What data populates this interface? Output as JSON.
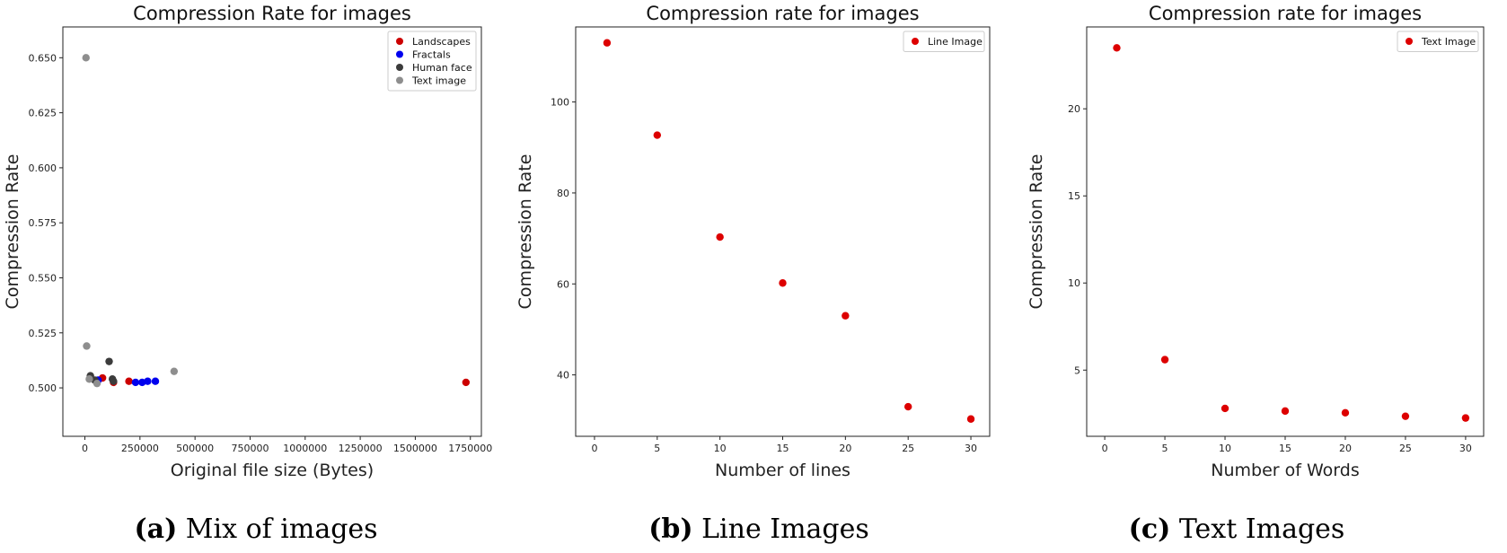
{
  "chart_data": [
    {
      "type": "scatter",
      "title": "Compression Rate for images",
      "xlabel": "Original file size (Bytes)",
      "ylabel": "Compression Rate",
      "xlim": [
        -100000,
        1800000
      ],
      "ylim": [
        0.478,
        0.664
      ],
      "xticks": [
        0,
        250000,
        500000,
        750000,
        1000000,
        1250000,
        1500000,
        1750000
      ],
      "xtick_labels": [
        "0",
        "250000",
        "500000",
        "750000",
        "1000000",
        "1250000",
        "1500000",
        "1750000"
      ],
      "yticks": [
        0.5,
        0.525,
        0.55,
        0.575,
        0.6,
        0.625,
        0.65
      ],
      "ytick_labels": [
        "0.500",
        "0.525",
        "0.550",
        "0.575",
        "0.600",
        "0.625",
        "0.650"
      ],
      "grid": false,
      "legend_position": "top-right",
      "series": [
        {
          "name": "Landscapes",
          "color": "#cc0000",
          "x": [
            80000,
            130000,
            200000,
            1730000
          ],
          "y": [
            0.5045,
            0.5025,
            0.503,
            0.5025
          ]
        },
        {
          "name": "Fractals",
          "color": "#0000ee",
          "x": [
            60000,
            230000,
            260000,
            285000,
            320000
          ],
          "y": [
            0.5035,
            0.5025,
            0.5025,
            0.503,
            0.503
          ]
        },
        {
          "name": "Human face",
          "color": "#3c3c3c",
          "x": [
            25000,
            45000,
            110000,
            125000,
            130000
          ],
          "y": [
            0.5055,
            0.5035,
            0.512,
            0.504,
            0.503
          ]
        },
        {
          "name": "Text image",
          "color": "#8e8e8e",
          "x": [
            5000,
            8000,
            20000,
            55000,
            405000
          ],
          "y": [
            0.65,
            0.519,
            0.504,
            0.502,
            0.5075
          ]
        }
      ]
    },
    {
      "type": "scatter",
      "title": "Compression rate for images",
      "xlabel": "Number of lines",
      "ylabel": "Compression Rate",
      "xlim": [
        -1.5,
        31.5
      ],
      "ylim": [
        26.5,
        116.5
      ],
      "xticks": [
        0,
        5,
        10,
        15,
        20,
        25,
        30
      ],
      "xtick_labels": [
        "0",
        "5",
        "10",
        "15",
        "20",
        "25",
        "30"
      ],
      "yticks": [
        40,
        60,
        80,
        100
      ],
      "ytick_labels": [
        "40",
        "60",
        "80",
        "100"
      ],
      "grid": false,
      "legend_position": "top-right",
      "series": [
        {
          "name": "Line Image",
          "color": "#dd0000",
          "x": [
            1,
            5,
            10,
            15,
            20,
            25,
            30
          ],
          "y": [
            113,
            92.7,
            70.3,
            60.2,
            53,
            33,
            30.3
          ]
        }
      ]
    },
    {
      "type": "scatter",
      "title": "Compression rate for images",
      "xlabel": "Number of Words",
      "ylabel": "Compression Rate",
      "xlim": [
        -1.5,
        31.5
      ],
      "ylim": [
        1.2,
        24.7
      ],
      "xticks": [
        0,
        5,
        10,
        15,
        20,
        25,
        30
      ],
      "xtick_labels": [
        "0",
        "5",
        "10",
        "15",
        "20",
        "25",
        "30"
      ],
      "yticks": [
        5,
        10,
        15,
        20
      ],
      "ytick_labels": [
        "5",
        "10",
        "15",
        "20"
      ],
      "grid": false,
      "legend_position": "top-right",
      "series": [
        {
          "name": "Text Image",
          "color": "#dd0000",
          "x": [
            1,
            5,
            10,
            15,
            20,
            25,
            30
          ],
          "y": [
            23.5,
            5.6,
            2.8,
            2.65,
            2.55,
            2.35,
            2.25
          ]
        }
      ]
    }
  ],
  "captions": [
    {
      "label": "(a)",
      "text": " Mix of images"
    },
    {
      "label": "(b)",
      "text": " Line Images"
    },
    {
      "label": "(c)",
      "text": " Text Images"
    }
  ]
}
